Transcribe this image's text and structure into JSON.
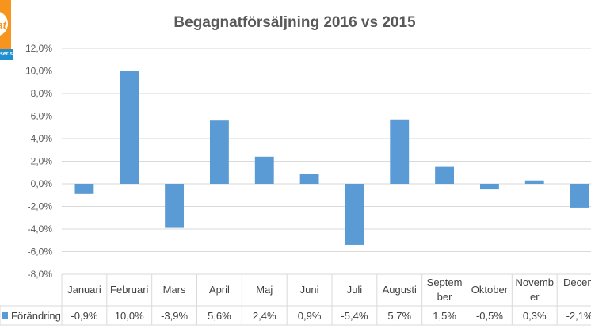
{
  "logo": {
    "mark": "ttat",
    "domain": "ser.se"
  },
  "chart_data": {
    "type": "bar",
    "title": "Begagnatförsäljning 2016 vs 2015",
    "categories": [
      "Januari",
      "Februari",
      "Mars",
      "April",
      "Maj",
      "Juni",
      "Juli",
      "Augusti",
      "September",
      "Oktober",
      "November",
      "December"
    ],
    "category_lines": [
      [
        "Januari"
      ],
      [
        "Februari"
      ],
      [
        "Mars"
      ],
      [
        "April"
      ],
      [
        "Maj"
      ],
      [
        "Juni"
      ],
      [
        "Juli"
      ],
      [
        "Augusti"
      ],
      [
        "Septem",
        "ber"
      ],
      [
        "Oktober"
      ],
      [
        "Novemb",
        "er"
      ],
      [
        "Decem",
        ""
      ]
    ],
    "series": [
      {
        "name": "Förändring",
        "values": [
          -0.9,
          10.0,
          -3.9,
          5.6,
          2.4,
          0.9,
          -5.4,
          5.7,
          1.5,
          -0.5,
          0.3,
          -2.1
        ],
        "labels": [
          "-0,9%",
          "10,0%",
          "-3,9%",
          "5,6%",
          "2,4%",
          "0,9%",
          "-5,4%",
          "5,7%",
          "1,5%",
          "-0,5%",
          "0,3%",
          "-2,1%"
        ],
        "color": "#5b9bd5"
      }
    ],
    "ylim": [
      -8,
      12
    ],
    "yticks": [
      "-8,0%",
      "-6,0%",
      "-4,0%",
      "-2,0%",
      "0,0%",
      "2,0%",
      "4,0%",
      "6,0%",
      "8,0%",
      "10,0%",
      "12,0%"
    ],
    "grid": true,
    "legend": "data-table"
  }
}
